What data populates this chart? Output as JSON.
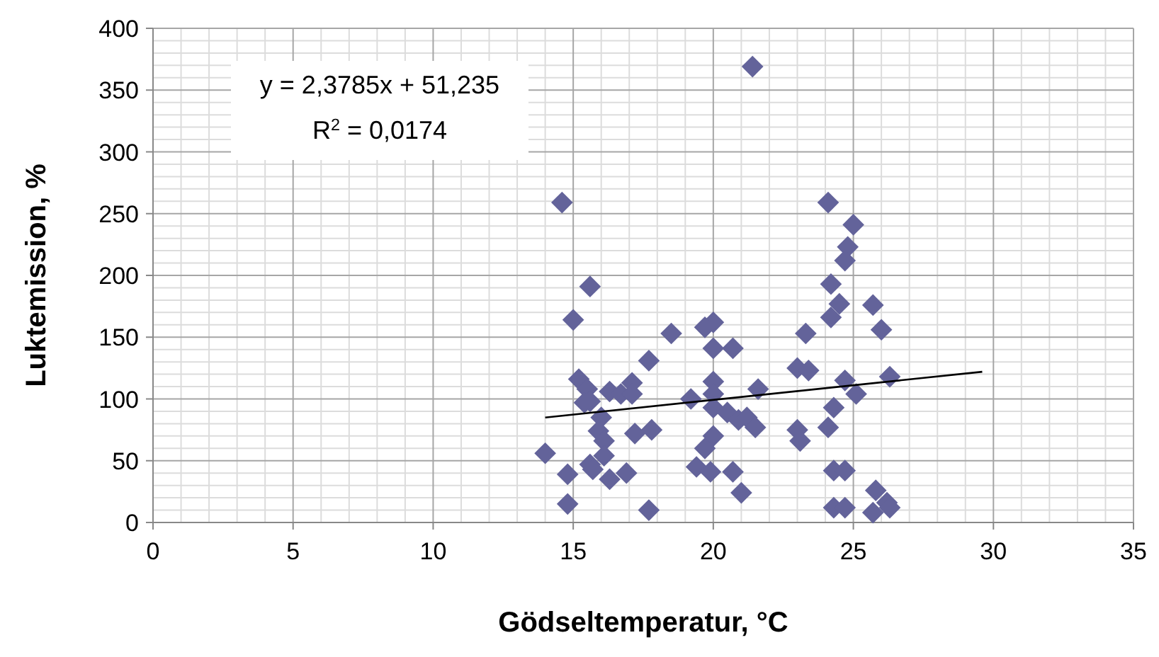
{
  "chart_data": {
    "type": "scatter",
    "xlabel": "Gödseltemperatur, °C",
    "ylabel": "Luktemission, %",
    "xlim": [
      0,
      35
    ],
    "ylim": [
      0,
      400
    ],
    "xticks": [
      0,
      5,
      10,
      15,
      20,
      25,
      30,
      35
    ],
    "yticks": [
      0,
      50,
      100,
      150,
      200,
      250,
      300,
      350,
      400
    ],
    "grid": true,
    "marker": "diamond",
    "annotations": [
      "y = 2,3785x + 51,235",
      "R$^{2}$ = 0,0174"
    ],
    "series": [
      {
        "color": "#63639a",
        "x": [
          14.6,
          15.6,
          15.0,
          18.5,
          20.0,
          19.7,
          20.0,
          20.7,
          17.7,
          15.2,
          15.5,
          15.6,
          15.4,
          16.3,
          16.7,
          17.1,
          17.1,
          19.2,
          20.0,
          20.0,
          21.6,
          20.0,
          20.5,
          20.9,
          21.2,
          21.5,
          16.0,
          15.9,
          16.1,
          17.2,
          17.8,
          20.0,
          19.7,
          14.0,
          14.8,
          15.6,
          15.7,
          16.1,
          16.3,
          16.9,
          19.4,
          19.9,
          20.7,
          21.0,
          14.8,
          17.7,
          21.4,
          24.1,
          25.0,
          24.8,
          24.7,
          24.2,
          24.5,
          24.2,
          25.7,
          26.0,
          23.3,
          23.0,
          23.4,
          24.7,
          25.1,
          26.3,
          24.3,
          24.1,
          23.0,
          23.1,
          24.3,
          24.7,
          24.3,
          24.7,
          25.8,
          26.2,
          25.7,
          26.3
        ],
        "values": [
          259,
          191,
          164,
          153,
          162,
          158,
          141,
          141,
          131,
          116,
          108,
          98,
          97,
          106,
          104,
          113,
          104,
          100,
          114,
          104,
          108,
          93,
          89,
          83,
          85,
          77,
          85,
          74,
          66,
          72,
          75,
          70,
          60,
          56,
          39,
          47,
          43,
          54,
          35,
          40,
          45,
          41,
          41,
          24,
          15,
          10,
          369,
          259,
          241,
          223,
          212,
          193,
          177,
          166,
          176,
          156,
          153,
          125,
          123,
          115,
          104,
          118,
          93,
          77,
          75,
          66,
          42,
          42,
          12,
          12,
          26,
          16,
          8,
          12
        ]
      },
      {
        "type": "line",
        "color": "#000000",
        "marker": "none",
        "x": [
          14.0,
          29.6
        ],
        "values": [
          85,
          122
        ]
      }
    ]
  }
}
